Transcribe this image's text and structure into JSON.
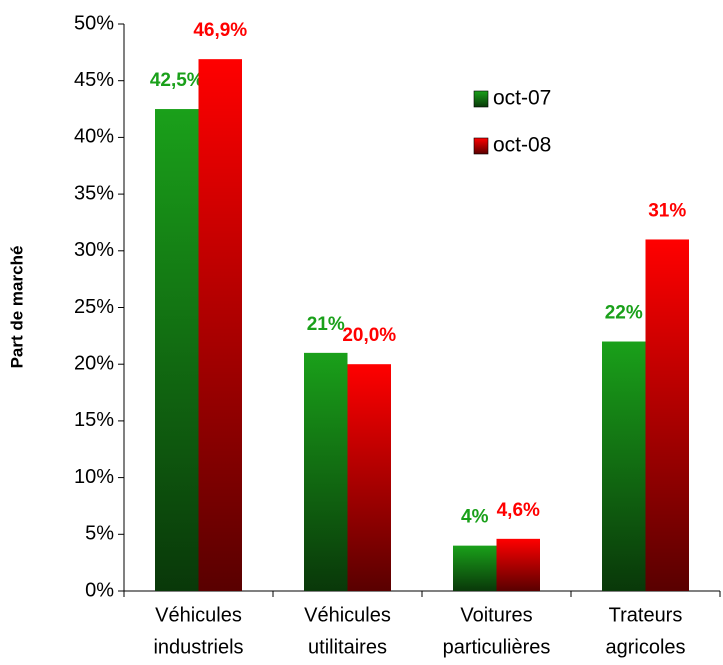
{
  "chart_data": {
    "type": "bar",
    "y_label": "Part de marché",
    "categories": [
      [
        "Véhicules",
        "industriels"
      ],
      [
        "Véhicules",
        "utilitaires"
      ],
      [
        "Voitures",
        "particulières"
      ],
      [
        "Trateurs",
        "agricoles"
      ]
    ],
    "series": [
      {
        "name": "oct-07",
        "color": "#1aa01a",
        "values": [
          42.5,
          21,
          4,
          22
        ],
        "value_labels": [
          "42,5%",
          "21%",
          "4%",
          "22%"
        ]
      },
      {
        "name": "oct-08",
        "color": "#ff0000",
        "values": [
          46.9,
          20.0,
          4.6,
          31
        ],
        "value_labels": [
          "46,9%",
          "20,0%",
          "4,6%",
          "31%"
        ]
      }
    ],
    "ylim": [
      0,
      50
    ],
    "yticks": [
      {
        "value": 0,
        "label": "0%"
      },
      {
        "value": 5,
        "label": "5%"
      },
      {
        "value": 10,
        "label": "10%"
      },
      {
        "value": 15,
        "label": "15%"
      },
      {
        "value": 20,
        "label": "20%"
      },
      {
        "value": 25,
        "label": "25%"
      },
      {
        "value": 30,
        "label": "30%"
      },
      {
        "value": 35,
        "label": "35%"
      },
      {
        "value": 40,
        "label": "40%"
      },
      {
        "value": 45,
        "label": "45%"
      },
      {
        "value": 50,
        "label": "50%"
      }
    ],
    "grid": false
  }
}
